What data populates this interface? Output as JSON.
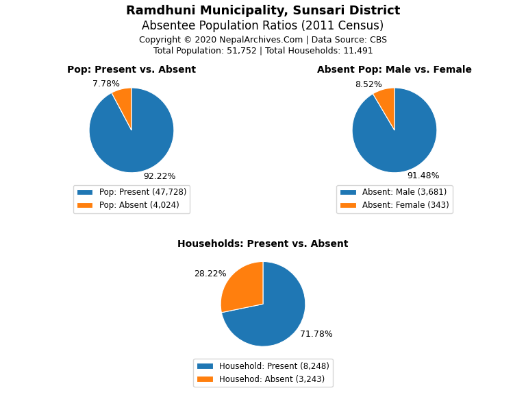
{
  "title": "Ramdhuni Municipality, Sunsari District",
  "subtitle": "Absentee Population Ratios (2011 Census)",
  "annotations": [
    "Copyright © 2020 NepalArchives.Com | Data Source: CBS",
    "Total Population: 51,752 | Total Households: 11,491"
  ],
  "chart_data": [
    {
      "type": "pie",
      "title": "Pop: Present vs. Absent",
      "categories": [
        "Pop: Present (47,728)",
        "Pop: Absent (4,024)"
      ],
      "values": [
        92.22,
        7.78
      ],
      "value_labels": [
        "92.22%",
        "7.78%"
      ],
      "data_labels": true,
      "legend": "lower center"
    },
    {
      "type": "pie",
      "title": "Absent Pop: Male vs. Female",
      "categories": [
        "Absent: Male (3,681)",
        "Absent: Female (343)"
      ],
      "values": [
        91.48,
        8.52
      ],
      "value_labels": [
        "91.48%",
        "8.52%"
      ],
      "data_labels": true,
      "legend": "lower center"
    },
    {
      "type": "pie",
      "title": "Households: Present vs. Absent",
      "categories": [
        "Household: Present (8,248)",
        "Househod: Absent (3,243)"
      ],
      "values": [
        71.78,
        28.22
      ],
      "value_labels": [
        "71.78%",
        "28.22%"
      ],
      "data_labels": true,
      "legend": "lower center"
    }
  ]
}
